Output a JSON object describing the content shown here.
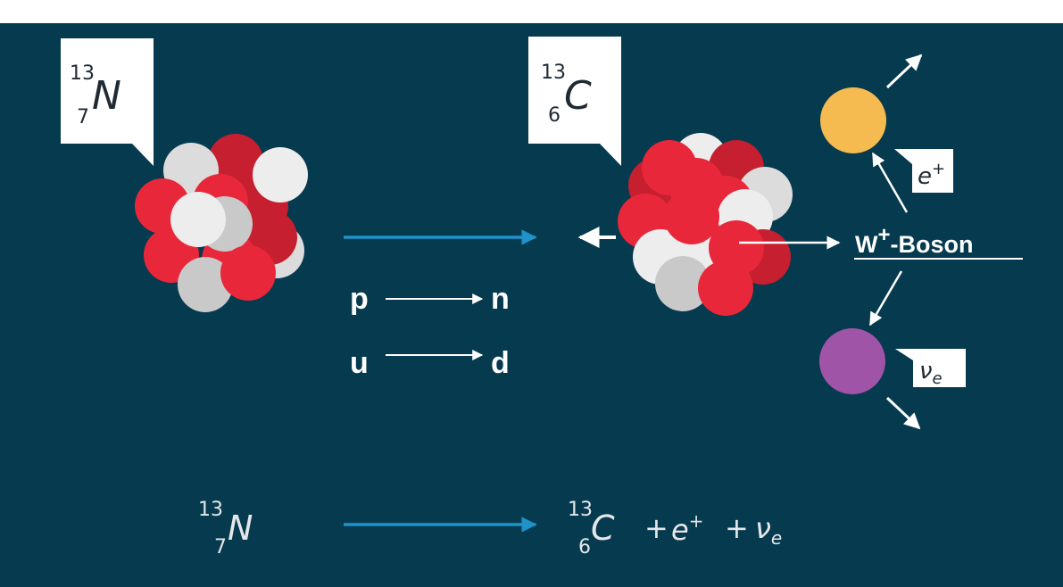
{
  "title": "",
  "colors": {
    "background": "#063a4f",
    "arrow_blue": "#1e92c9",
    "proton_red": "#e8283a",
    "proton_dark": "#c61f30",
    "neutron_gray": "#dcdcdc",
    "positron_yellow": "#f5bb50",
    "neutrino_purple": "#a054a8"
  },
  "reactant": {
    "mass": "13",
    "atomic": "7",
    "symbol": "N"
  },
  "product": {
    "mass": "13",
    "atomic": "6",
    "symbol": "C"
  },
  "conversions": [
    {
      "from": "p",
      "to": "n"
    },
    {
      "from": "u",
      "to": "d"
    }
  ],
  "boson": {
    "name": "W",
    "charge": "+",
    "suffix": "-Boson"
  },
  "positron": {
    "symbol": "e",
    "charge": "+"
  },
  "neutrino": {
    "symbol": "ν",
    "subscript": "e"
  },
  "equation": {
    "left": {
      "mass": "13",
      "atomic": "7",
      "symbol": "N"
    },
    "right_nucleus": {
      "mass": "13",
      "atomic": "6",
      "symbol": "C"
    },
    "plus1": "+",
    "positron": "e",
    "positron_charge": "+",
    "plus2": "+",
    "neutrino": "ν",
    "neutrino_sub": "e"
  }
}
